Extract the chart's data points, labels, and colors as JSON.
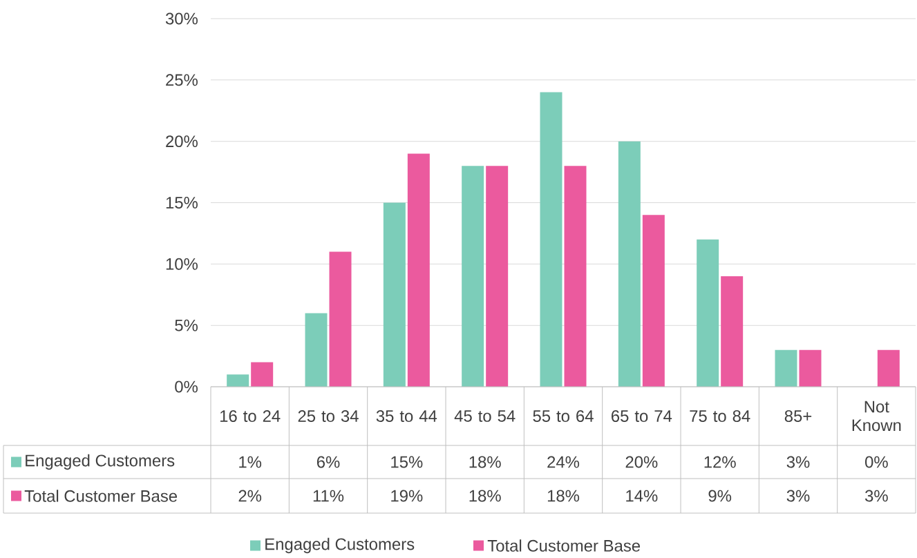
{
  "chart_data": {
    "type": "bar",
    "categories": [
      "16 to 24",
      "25 to 34",
      "35 to 44",
      "45 to 54",
      "55 to 64",
      "65 to 74",
      "75 to 84",
      "85+",
      "Not Known"
    ],
    "series": [
      {
        "name": "Engaged Customers",
        "color": "#7ccdb9",
        "values": [
          1,
          6,
          15,
          18,
          24,
          20,
          12,
          3,
          0
        ],
        "value_labels": [
          "1%",
          "6%",
          "15%",
          "18%",
          "24%",
          "20%",
          "12%",
          "3%",
          "0%"
        ]
      },
      {
        "name": "Total Customer Base",
        "color": "#eb5a9e",
        "values": [
          2,
          11,
          19,
          18,
          18,
          14,
          9,
          3,
          3
        ],
        "value_labels": [
          "2%",
          "11%",
          "19%",
          "18%",
          "18%",
          "14%",
          "9%",
          "3%",
          "3%"
        ]
      }
    ],
    "ylim": [
      0,
      30
    ],
    "yticks": [
      {
        "value": 0,
        "label": "0%"
      },
      {
        "value": 5,
        "label": "5%"
      },
      {
        "value": 10,
        "label": "10%"
      },
      {
        "value": 15,
        "label": "15%"
      },
      {
        "value": 20,
        "label": "20%"
      },
      {
        "value": 25,
        "label": "25%"
      },
      {
        "value": 30,
        "label": "30%"
      }
    ],
    "grid": "y",
    "legend": "bottom"
  }
}
